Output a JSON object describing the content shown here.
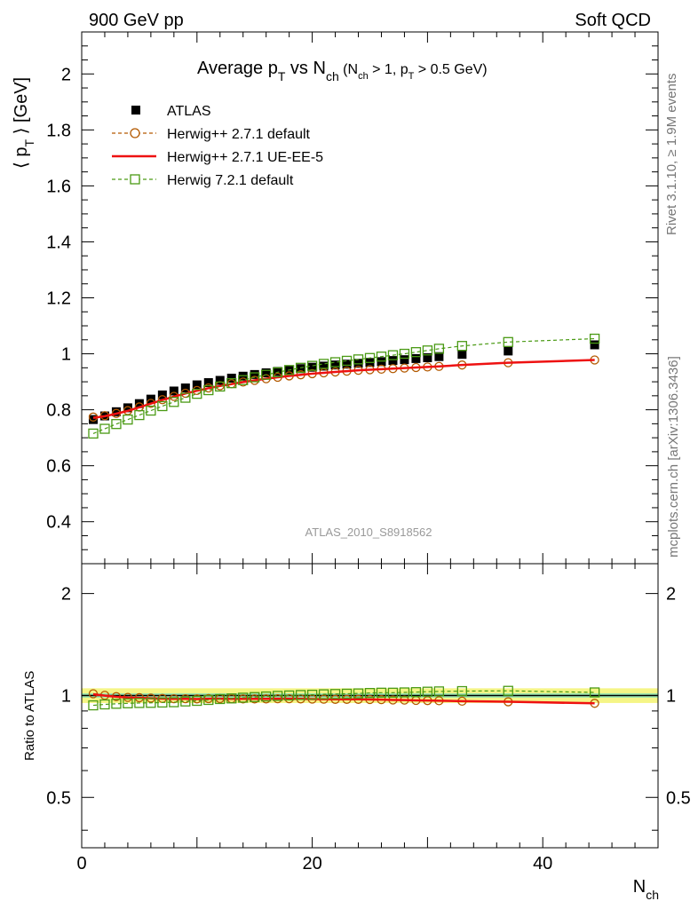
{
  "header": {
    "left": "900 GeV pp",
    "right": "Soft QCD"
  },
  "side_labels": {
    "rivet": "Rivet 3.1.10, ≥ 1.9M events",
    "mcplots": "mcplots.cern.ch [arXiv:1306.3436]"
  },
  "chart_data": [
    {
      "type": "scatter",
      "title": "Average p_T vs N_ch (N_ch > 1, p_T > 0.5 GeV)",
      "ylabel": "⟨ p_T ⟩ [GeV]",
      "xlabel": "N_ch",
      "watermark": "ATLAS_2010_S8918562",
      "xlim": [
        0,
        50
      ],
      "ylim": [
        0.25,
        2.15
      ],
      "y_ticks": [
        "0.4",
        "0.6",
        "0.8",
        "1",
        "1.2",
        "1.4",
        "1.6",
        "1.8",
        "2"
      ],
      "legend_position": "top-left",
      "x": [
        1,
        2,
        3,
        4,
        5,
        6,
        7,
        8,
        9,
        10,
        11,
        12,
        13,
        14,
        15,
        16,
        17,
        18,
        19,
        20,
        21,
        22,
        23,
        24,
        25,
        26,
        27,
        28,
        29,
        30,
        31,
        33,
        37,
        44.5
      ],
      "series": [
        {
          "name": "ATLAS",
          "color": "#000000",
          "marker": "filled-square",
          "values": [
            0.765,
            0.778,
            0.793,
            0.807,
            0.822,
            0.838,
            0.853,
            0.867,
            0.878,
            0.889,
            0.897,
            0.905,
            0.913,
            0.92,
            0.926,
            0.932,
            0.937,
            0.942,
            0.947,
            0.952,
            0.956,
            0.96,
            0.963,
            0.966,
            0.969,
            0.972,
            0.976,
            0.979,
            0.983,
            0.986,
            0.99,
            0.998,
            1.01,
            1.032
          ]
        },
        {
          "name": "Herwig++ 2.7.1 default",
          "color": "#b35900",
          "marker": "open-circle",
          "line": "dashed",
          "values": [
            0.774,
            0.779,
            0.787,
            0.797,
            0.81,
            0.823,
            0.836,
            0.848,
            0.859,
            0.869,
            0.878,
            0.886,
            0.893,
            0.899,
            0.905,
            0.911,
            0.916,
            0.921,
            0.925,
            0.929,
            0.932,
            0.935,
            0.938,
            0.941,
            0.943,
            0.945,
            0.947,
            0.949,
            0.951,
            0.953,
            0.955,
            0.96,
            0.968,
            0.978
          ]
        },
        {
          "name": "Herwig++ 2.7.1 UE-EE-5",
          "color": "#ee1111",
          "marker": "none",
          "line": "solid",
          "values": [
            0.771,
            0.777,
            0.786,
            0.796,
            0.809,
            0.822,
            0.835,
            0.847,
            0.858,
            0.868,
            0.877,
            0.885,
            0.892,
            0.899,
            0.905,
            0.911,
            0.916,
            0.921,
            0.925,
            0.929,
            0.932,
            0.935,
            0.938,
            0.941,
            0.943,
            0.945,
            0.947,
            0.949,
            0.951,
            0.953,
            0.955,
            0.96,
            0.968,
            0.978
          ]
        },
        {
          "name": "Herwig 7.2.1 default",
          "color": "#4a9a14",
          "marker": "open-square",
          "line": "dashed",
          "values": [
            0.715,
            0.732,
            0.749,
            0.765,
            0.781,
            0.797,
            0.813,
            0.828,
            0.843,
            0.857,
            0.87,
            0.883,
            0.895,
            0.906,
            0.916,
            0.925,
            0.934,
            0.942,
            0.95,
            0.957,
            0.964,
            0.97,
            0.975,
            0.98,
            0.985,
            0.99,
            0.995,
            1.0,
            1.006,
            1.012,
            1.018,
            1.028,
            1.042,
            1.054
          ]
        }
      ]
    },
    {
      "type": "scatter",
      "ylabel": "Ratio to ATLAS",
      "xlabel": "N_ch",
      "xlim": [
        0,
        50
      ],
      "ylim": [
        0.355,
        2.45
      ],
      "y_scale": "log",
      "y_ticks": [
        "0.5",
        "1",
        "2"
      ],
      "x_ticks": [
        "0",
        "20",
        "40"
      ],
      "reference_line": 1,
      "band_colors": {
        "outer": "#f5f586",
        "inner": "#9ee8b0"
      },
      "band_inner": [
        0.985,
        1.015
      ],
      "band_outer": [
        0.95,
        1.05
      ],
      "x": [
        1,
        2,
        3,
        4,
        5,
        6,
        7,
        8,
        9,
        10,
        11,
        12,
        13,
        14,
        15,
        16,
        17,
        18,
        19,
        20,
        21,
        22,
        23,
        24,
        25,
        26,
        27,
        28,
        29,
        30,
        31,
        33,
        37,
        44.5
      ],
      "series": [
        {
          "name": "Herwig++ 2.7.1 default",
          "color": "#b35900",
          "marker": "open-circle",
          "line": "dashed",
          "values": [
            1.012,
            1.001,
            0.992,
            0.987,
            0.985,
            0.982,
            0.98,
            0.978,
            0.978,
            0.977,
            0.979,
            0.979,
            0.978,
            0.977,
            0.977,
            0.977,
            0.978,
            0.978,
            0.977,
            0.976,
            0.975,
            0.974,
            0.974,
            0.974,
            0.973,
            0.972,
            0.97,
            0.969,
            0.967,
            0.966,
            0.965,
            0.962,
            0.958,
            0.948
          ]
        },
        {
          "name": "Herwig++ 2.7.1 UE-EE-5",
          "color": "#ee1111",
          "marker": "none",
          "line": "solid",
          "values": [
            1.008,
            0.999,
            0.991,
            0.986,
            0.984,
            0.981,
            0.979,
            0.977,
            0.977,
            0.976,
            0.978,
            0.978,
            0.977,
            0.977,
            0.977,
            0.977,
            0.978,
            0.978,
            0.977,
            0.976,
            0.975,
            0.974,
            0.974,
            0.974,
            0.973,
            0.972,
            0.97,
            0.969,
            0.967,
            0.966,
            0.965,
            0.962,
            0.958,
            0.948
          ]
        },
        {
          "name": "Herwig 7.2.1 default",
          "color": "#4a9a14",
          "marker": "open-square",
          "line": "dashed",
          "values": [
            0.935,
            0.941,
            0.945,
            0.948,
            0.95,
            0.951,
            0.953,
            0.955,
            0.96,
            0.964,
            0.97,
            0.976,
            0.98,
            0.985,
            0.989,
            0.993,
            0.997,
            1.0,
            1.003,
            1.005,
            1.008,
            1.01,
            1.012,
            1.014,
            1.017,
            1.019,
            1.019,
            1.021,
            1.023,
            1.026,
            1.028,
            1.03,
            1.032,
            1.021
          ]
        }
      ]
    }
  ]
}
